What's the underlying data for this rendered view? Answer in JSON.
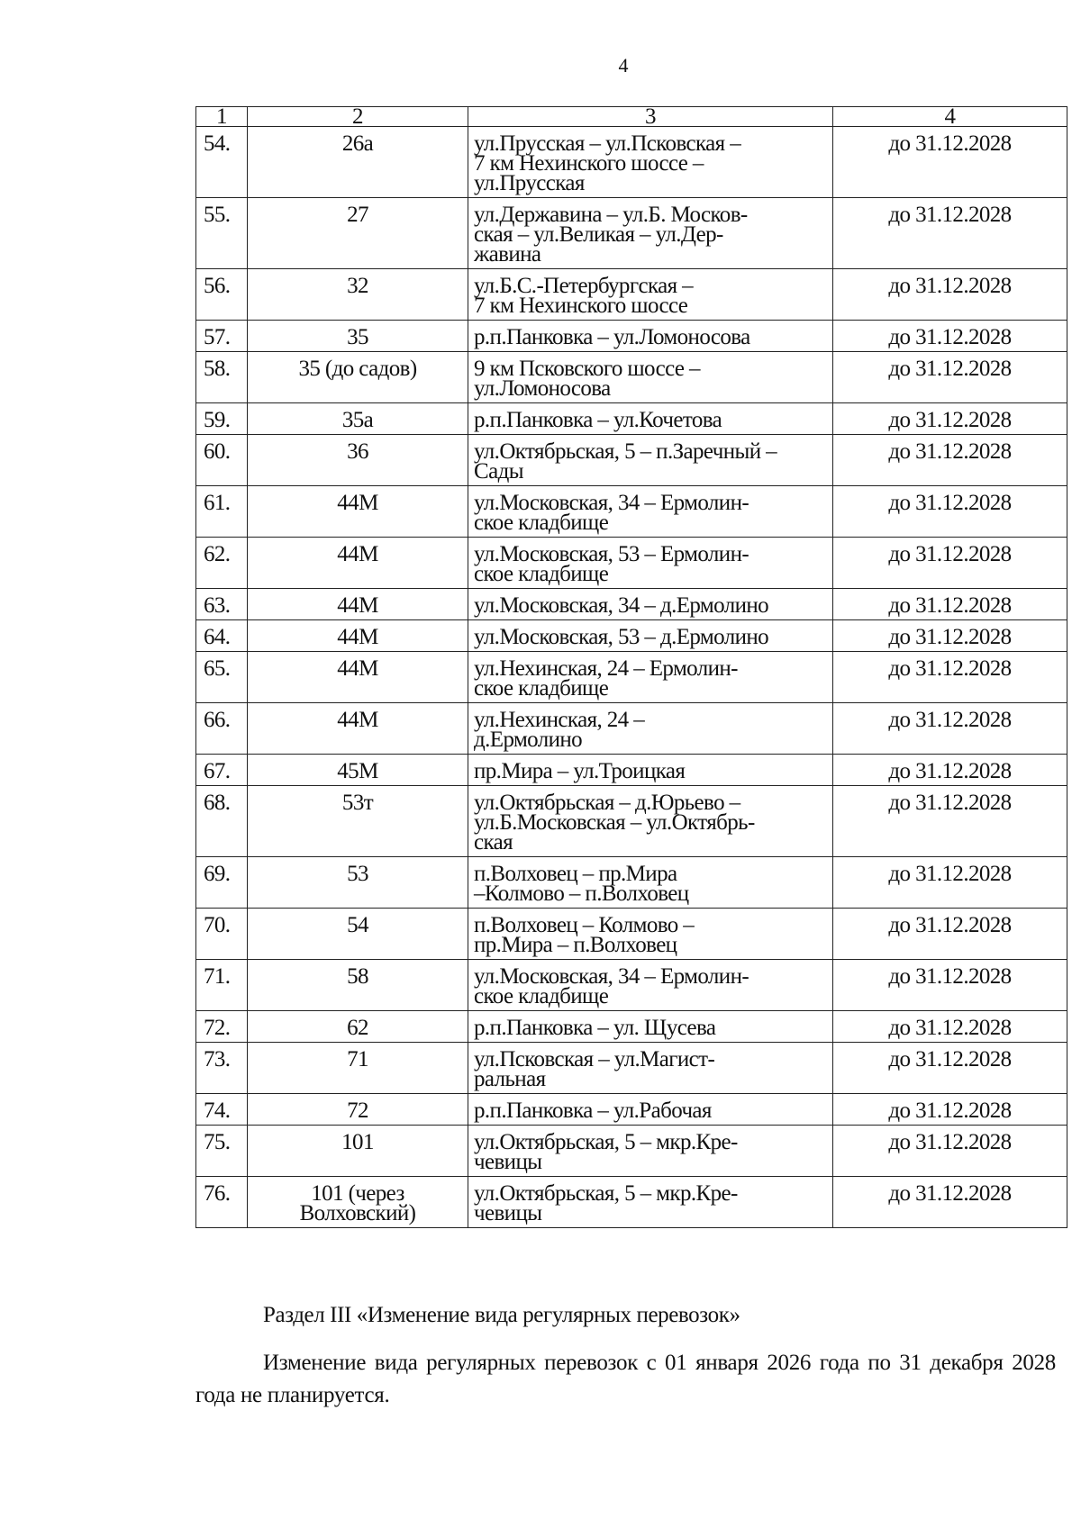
{
  "page_number": "4",
  "table": {
    "headers": [
      "1",
      "2",
      "3",
      "4"
    ],
    "rows": [
      {
        "n": "54.",
        "route": "26а",
        "path": [
          "ул.Прусская – ул.Псковская –",
          "7 км Нехинского шоссе –",
          "ул.Прусская"
        ],
        "term": "до 31.12.2028"
      },
      {
        "n": "55.",
        "route": "27",
        "path": [
          "ул.Державина – ул.Б. Москов-",
          "ская – ул.Великая – ул.Дер-",
          "жавина"
        ],
        "term": "до 31.12.2028"
      },
      {
        "n": "56.",
        "route": "32",
        "path": [
          "ул.Б.С.-Петербургская –",
          "7 км Нехинского шоссе"
        ],
        "term": "до 31.12.2028"
      },
      {
        "n": "57.",
        "route": "35",
        "path": [
          "р.п.Панковка – ул.Ломоносова"
        ],
        "term": "до 31.12.2028"
      },
      {
        "n": "58.",
        "route": "35 (до садов)",
        "path": [
          "9 км Псковского шоссе –",
          "ул.Ломоносова"
        ],
        "term": "до 31.12.2028"
      },
      {
        "n": "59.",
        "route": "35а",
        "path": [
          "р.п.Панковка – ул.Кочетова"
        ],
        "term": "до 31.12.2028"
      },
      {
        "n": "60.",
        "route": "36",
        "path": [
          "ул.Октябрьская, 5 – п.Заречный –",
          "Сады"
        ],
        "term": "до 31.12.2028"
      },
      {
        "n": "61.",
        "route": "44М",
        "path": [
          "ул.Московская, 34 – Ермолин-",
          "ское кладбище"
        ],
        "term": "до 31.12.2028"
      },
      {
        "n": "62.",
        "route": "44М",
        "path": [
          "ул.Московская, 53 – Ермолин-",
          "ское кладбище"
        ],
        "term": "до 31.12.2028"
      },
      {
        "n": "63.",
        "route": "44М",
        "path": [
          "ул.Московская, 34 – д.Ермолино"
        ],
        "term": "до 31.12.2028"
      },
      {
        "n": "64.",
        "route": "44М",
        "path": [
          "ул.Московская, 53 – д.Ермолино"
        ],
        "term": "до 31.12.2028"
      },
      {
        "n": "65.",
        "route": "44М",
        "path": [
          "ул.Нехинская, 24 – Ермолин-",
          "ское кладбище"
        ],
        "term": "до 31.12.2028"
      },
      {
        "n": "66.",
        "route": "44М",
        "path": [
          "ул.Нехинская, 24 –",
          "д.Ермолино"
        ],
        "term": "до 31.12.2028"
      },
      {
        "n": "67.",
        "route": "45М",
        "path": [
          "пр.Мира – ул.Троицкая"
        ],
        "term": "до 31.12.2028"
      },
      {
        "n": "68.",
        "route": "53т",
        "path": [
          "ул.Октябрьская – д.Юрьево –",
          "ул.Б.Московская – ул.Октябрь-",
          "ская"
        ],
        "term": "до 31.12.2028"
      },
      {
        "n": "69.",
        "route": "53",
        "path": [
          "п.Волховец – пр.Мира",
          "–Колмово – п.Волховец"
        ],
        "term": "до 31.12.2028"
      },
      {
        "n": "70.",
        "route": "54",
        "path": [
          "п.Волховец – Колмово –",
          "пр.Мира – п.Волховец"
        ],
        "term": "до 31.12.2028"
      },
      {
        "n": "71.",
        "route": "58",
        "path": [
          "ул.Московская, 34 – Ермолин-",
          "ское кладбище"
        ],
        "term": "до 31.12.2028"
      },
      {
        "n": "72.",
        "route": "62",
        "path": [
          "р.п.Панковка – ул. Щусева"
        ],
        "term": "до 31.12.2028"
      },
      {
        "n": "73.",
        "route": "71",
        "path": [
          "ул.Псковская – ул.Магист-",
          "ральная"
        ],
        "term": "до 31.12.2028"
      },
      {
        "n": "74.",
        "route": "72",
        "path": [
          "р.п.Панковка – ул.Рабочая"
        ],
        "term": "до 31.12.2028"
      },
      {
        "n": "75.",
        "route": "101",
        "path": [
          "ул.Октябрьская, 5 – мкр.Кре-",
          "чевицы"
        ],
        "term": "до 31.12.2028"
      },
      {
        "n": "76.",
        "route": "101 (через Волховский)",
        "path": [
          "ул.Октябрьская, 5 – мкр.Кре-",
          "чевицы"
        ],
        "term": "до 31.12.2028"
      }
    ]
  },
  "section_title": "Раздел III «Изменение вида регулярных перевозок»",
  "paragraph": "Изменение вида регулярных перевозок с 01 января 2026 года по 31 декабря 2028 года не планируется."
}
